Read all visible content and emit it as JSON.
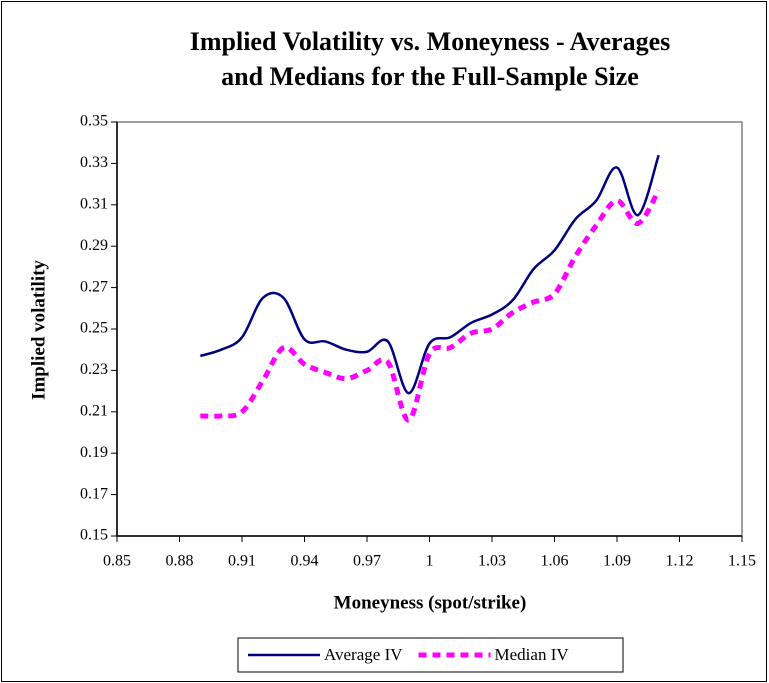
{
  "chart_data": {
    "type": "line",
    "title": "Implied Volatility vs. Moneyness - Averages",
    "subtitle": "and Medians for the Full-Sample Size",
    "x_label": "Moneyness (spot/strike)",
    "y_label": "Implied volatility",
    "x": [
      0.89,
      0.9,
      0.91,
      0.92,
      0.93,
      0.94,
      0.95,
      0.96,
      0.97,
      0.98,
      0.99,
      1,
      1.01,
      1.02,
      1.03,
      1.04,
      1.05,
      1.06,
      1.07,
      1.08,
      1.09,
      1.1,
      1.11
    ],
    "series": [
      {
        "name": "Average IV",
        "color": "#000080",
        "dashed": false,
        "values": [
          0.237,
          0.24,
          0.246,
          0.265,
          0.265,
          0.245,
          0.244,
          0.24,
          0.239,
          0.244,
          0.219,
          0.243,
          0.246,
          0.253,
          0.257,
          0.264,
          0.279,
          0.288,
          0.303,
          0.312,
          0.328,
          0.305,
          0.334
        ]
      },
      {
        "name": "Median IV",
        "color": "#ff00ff",
        "dashed": true,
        "values": [
          0.208,
          0.208,
          0.21,
          0.225,
          0.241,
          0.233,
          0.229,
          0.226,
          0.23,
          0.234,
          0.206,
          0.238,
          0.241,
          0.248,
          0.25,
          0.258,
          0.263,
          0.267,
          0.285,
          0.3,
          0.312,
          0.301,
          0.317
        ]
      }
    ],
    "xlim": [
      0.85,
      1.15
    ],
    "xticks": [
      0.85,
      0.88,
      0.91,
      0.94,
      0.97,
      1,
      1.03,
      1.06,
      1.09,
      1.12,
      1.15
    ],
    "ylim": [
      0.15,
      0.35
    ],
    "yticks": [
      0.15,
      0.17,
      0.19,
      0.21,
      0.23,
      0.25,
      0.27,
      0.29,
      0.31,
      0.33,
      0.35
    ],
    "grid": false,
    "legend": "bottom"
  }
}
